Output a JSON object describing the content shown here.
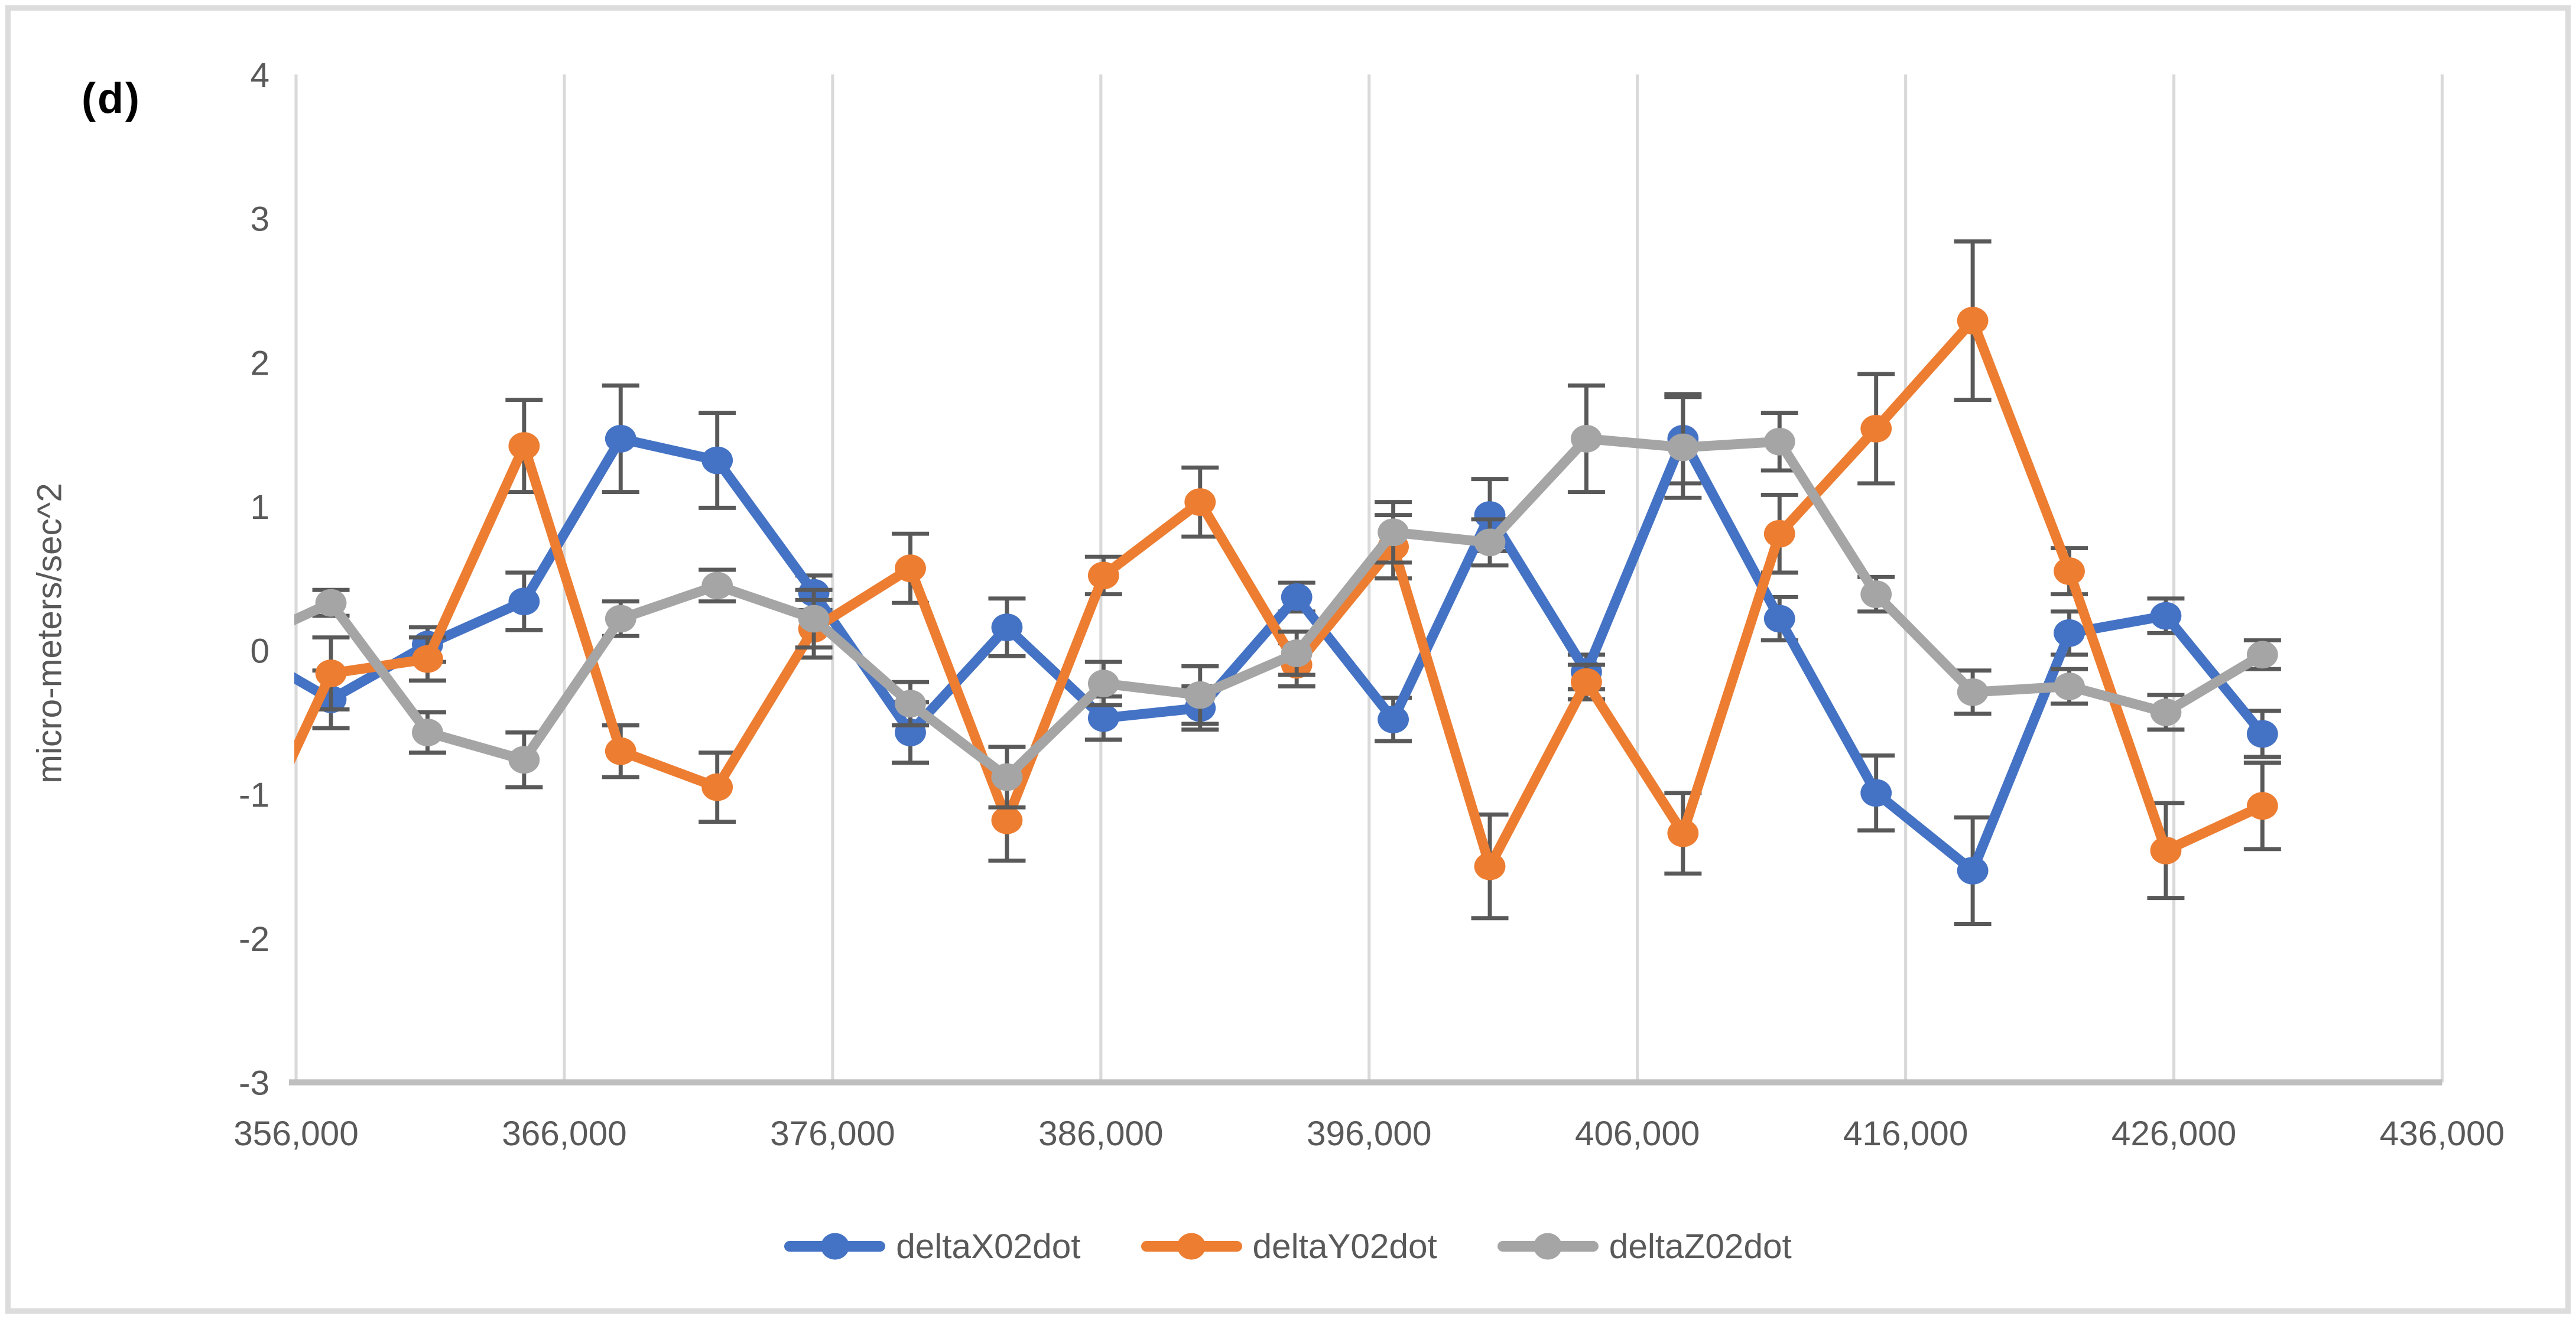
{
  "panel_label": "(d)",
  "colors": {
    "series_blue": "#4472C4",
    "series_orange": "#ED7D31",
    "series_gray": "#A5A5A5",
    "error_bar": "#595959",
    "gridline": "#D9D9D9",
    "axis_line": "#BFBFBF",
    "tick_text": "#595959",
    "panel_border": "#DCDCDC"
  },
  "y_axis": {
    "title": "micro-meters/sec^2",
    "tick_labels": [
      "4",
      "3",
      "2",
      "1",
      "0",
      "-1",
      "-2",
      "-3"
    ],
    "tick_values": [
      4,
      3,
      2,
      1,
      0,
      -1,
      -2,
      -3
    ],
    "min": -3,
    "max": 4
  },
  "x_axis": {
    "tick_labels": [
      "356,000",
      "366,000",
      "376,000",
      "386,000",
      "396,000",
      "406,000",
      "416,000",
      "426,000",
      "436,000"
    ],
    "tick_values": [
      356000,
      366000,
      376000,
      386000,
      396000,
      406000,
      416000,
      426000,
      436000
    ],
    "min": 356000,
    "max": 436000
  },
  "legend_labels": [
    "deltaX02dot",
    "deltaY02dot",
    "deltaZ02dot"
  ],
  "chart_data": {
    "type": "line",
    "title": "",
    "xlabel": "",
    "ylabel": "micro-meters/sec^2",
    "xlim": [
      356000,
      436000
    ],
    "ylim": [
      -3,
      4
    ],
    "grid": "vertical-only",
    "legend_position": "bottom",
    "markers": "circle",
    "error_bars": true,
    "x": [
      353700,
      357300,
      360900,
      364500,
      368100,
      371700,
      375300,
      378900,
      382500,
      386100,
      389700,
      393300,
      396900,
      400500,
      404100,
      407700,
      411300,
      414900,
      418500,
      422100,
      425700,
      429300
    ],
    "series": [
      {
        "name": "deltaX02dot",
        "color": "#4472C4",
        "values": [
          0.05,
          -0.34,
          0.04,
          0.34,
          1.47,
          1.32,
          0.4,
          -0.57,
          0.16,
          -0.47,
          -0.4,
          0.37,
          -0.48,
          0.94,
          -0.15,
          1.47,
          0.22,
          -0.99,
          -1.53,
          0.12,
          0.24,
          -0.58
        ],
        "errors": [
          0,
          0.2,
          0.12,
          0.2,
          0.37,
          0.33,
          0.12,
          0.21,
          0.2,
          0.15,
          0.15,
          0.1,
          0.15,
          0.25,
          0.12,
          0.31,
          0.15,
          0.26,
          0.37,
          0.15,
          0.12,
          0.16
        ]
      },
      {
        "name": "deltaY02dot",
        "color": "#ED7D31",
        "values": [
          -1.6,
          -0.16,
          -0.06,
          1.42,
          -0.7,
          -0.95,
          0.15,
          0.57,
          -1.18,
          0.52,
          1.03,
          -0.1,
          0.72,
          -1.5,
          -0.22,
          -1.27,
          0.81,
          1.54,
          2.29,
          0.55,
          -1.39,
          -1.08
        ],
        "errors": [
          0,
          0.25,
          0.15,
          0.32,
          0.18,
          0.24,
          0.2,
          0.24,
          0.28,
          0.13,
          0.24,
          0.15,
          0.22,
          0.36,
          0.12,
          0.28,
          0.27,
          0.38,
          0.55,
          0.16,
          0.33,
          0.3
        ]
      },
      {
        "name": "deltaZ02dot",
        "color": "#A5A5A5",
        "values": [
          0.02,
          0.33,
          -0.57,
          -0.76,
          0.22,
          0.45,
          0.22,
          -0.37,
          -0.88,
          -0.23,
          -0.31,
          -0.02,
          0.82,
          0.75,
          1.47,
          1.41,
          1.45,
          0.39,
          -0.29,
          -0.25,
          -0.43,
          -0.03
        ],
        "errors": [
          0,
          0.09,
          0.14,
          0.19,
          0.12,
          0.11,
          0.2,
          0.15,
          0.21,
          0.15,
          0.2,
          0.15,
          0.21,
          0.16,
          0.37,
          0.35,
          0.2,
          0.12,
          0.15,
          0.12,
          0.12,
          0.1
        ]
      }
    ]
  }
}
